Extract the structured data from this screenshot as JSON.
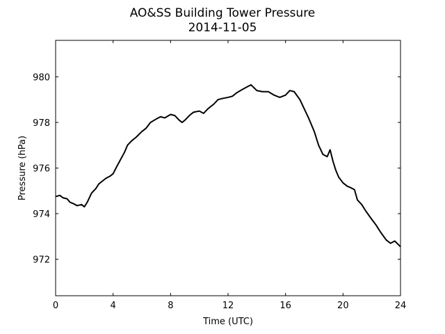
{
  "chart_data": {
    "type": "line",
    "title": "AO&SS Building Tower Pressure",
    "subtitle": "2014-11-05",
    "xlabel": "Time (UTC)",
    "ylabel": "Pressure (hPa)",
    "xlim": [
      0,
      24
    ],
    "ylim": [
      970.4,
      981.6
    ],
    "xticks": [
      0,
      4,
      8,
      12,
      16,
      20,
      24
    ],
    "yticks": [
      972,
      974,
      976,
      978,
      980
    ],
    "grid": false,
    "line_color": "#000000",
    "series": [
      {
        "x": [
          0.0,
          0.3,
          0.5,
          0.8,
          1.0,
          1.2,
          1.5,
          1.8,
          2.0,
          2.2,
          2.5,
          2.8,
          3.0,
          3.3,
          3.5,
          3.8,
          4.0,
          4.2,
          4.5,
          4.8,
          5.0,
          5.3,
          5.6,
          6.0,
          6.3,
          6.6,
          7.0,
          7.3,
          7.6,
          8.0,
          8.3,
          8.6,
          8.8,
          9.0,
          9.3,
          9.6,
          10.0,
          10.3,
          10.6,
          11.0,
          11.3,
          11.6,
          12.0,
          12.3,
          12.6,
          13.0,
          13.3,
          13.6,
          14.0,
          14.4,
          14.8,
          15.2,
          15.6,
          16.0,
          16.3,
          16.6,
          17.0,
          17.3,
          17.6,
          18.0,
          18.3,
          18.6,
          18.9,
          19.1,
          19.3,
          19.5,
          19.7,
          20.0,
          20.3,
          20.5,
          20.8,
          21.0,
          21.3,
          21.6,
          22.0,
          22.3,
          22.6,
          23.0,
          23.3,
          23.6,
          24.0
        ],
        "values": [
          974.75,
          974.8,
          974.7,
          974.65,
          974.5,
          974.45,
          974.35,
          974.4,
          974.3,
          974.5,
          974.9,
          975.1,
          975.3,
          975.45,
          975.55,
          975.65,
          975.75,
          976.0,
          976.35,
          976.7,
          977.0,
          977.2,
          977.35,
          977.6,
          977.75,
          978.0,
          978.15,
          978.25,
          978.2,
          978.35,
          978.3,
          978.1,
          978.0,
          978.1,
          978.3,
          978.45,
          978.5,
          978.4,
          978.6,
          978.8,
          979.0,
          979.05,
          979.1,
          979.15,
          979.3,
          979.45,
          979.55,
          979.65,
          979.4,
          979.35,
          979.35,
          979.2,
          979.1,
          979.2,
          979.4,
          979.35,
          979.0,
          978.6,
          978.2,
          977.6,
          977.0,
          976.6,
          976.5,
          976.8,
          976.3,
          975.9,
          975.6,
          975.35,
          975.2,
          975.15,
          975.05,
          974.6,
          974.4,
          974.1,
          973.75,
          973.5,
          973.2,
          972.85,
          972.7,
          972.8,
          972.55
        ]
      }
    ]
  }
}
